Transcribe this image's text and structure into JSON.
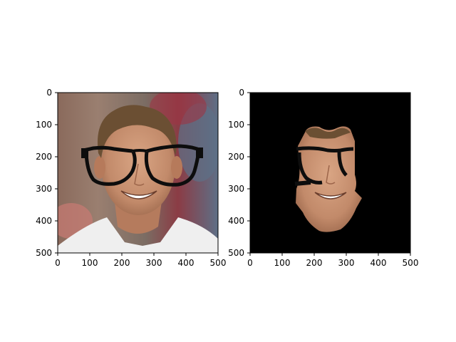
{
  "chart_data": [
    {
      "type": "image",
      "title": "",
      "xlabel": "",
      "ylabel": "",
      "xlim": [
        0,
        500
      ],
      "ylim": [
        500,
        0
      ],
      "xticks": [
        "0",
        "100",
        "200",
        "300",
        "400",
        "500"
      ],
      "yticks": [
        "0",
        "100",
        "200",
        "300",
        "400",
        "500"
      ],
      "content": "face photo with black glasses overlay",
      "colors": {
        "background_top": "#7a6e66",
        "skin": "#c99575",
        "hair": "#6b4f33",
        "shirt": "#eeeeee",
        "glasses": "#0d0d0d"
      }
    },
    {
      "type": "image",
      "title": "",
      "xlabel": "",
      "ylabel": "",
      "xlim": [
        0,
        500
      ],
      "ylim": [
        500,
        0
      ],
      "xticks": [
        "0",
        "100",
        "200",
        "300",
        "400",
        "500"
      ],
      "yticks": [
        "0",
        "100",
        "200",
        "300",
        "400",
        "500"
      ],
      "content": "segmented face region on black background",
      "colors": {
        "background": "#000000",
        "skin": "#c99575",
        "glasses": "#0d0d0d"
      }
    }
  ]
}
